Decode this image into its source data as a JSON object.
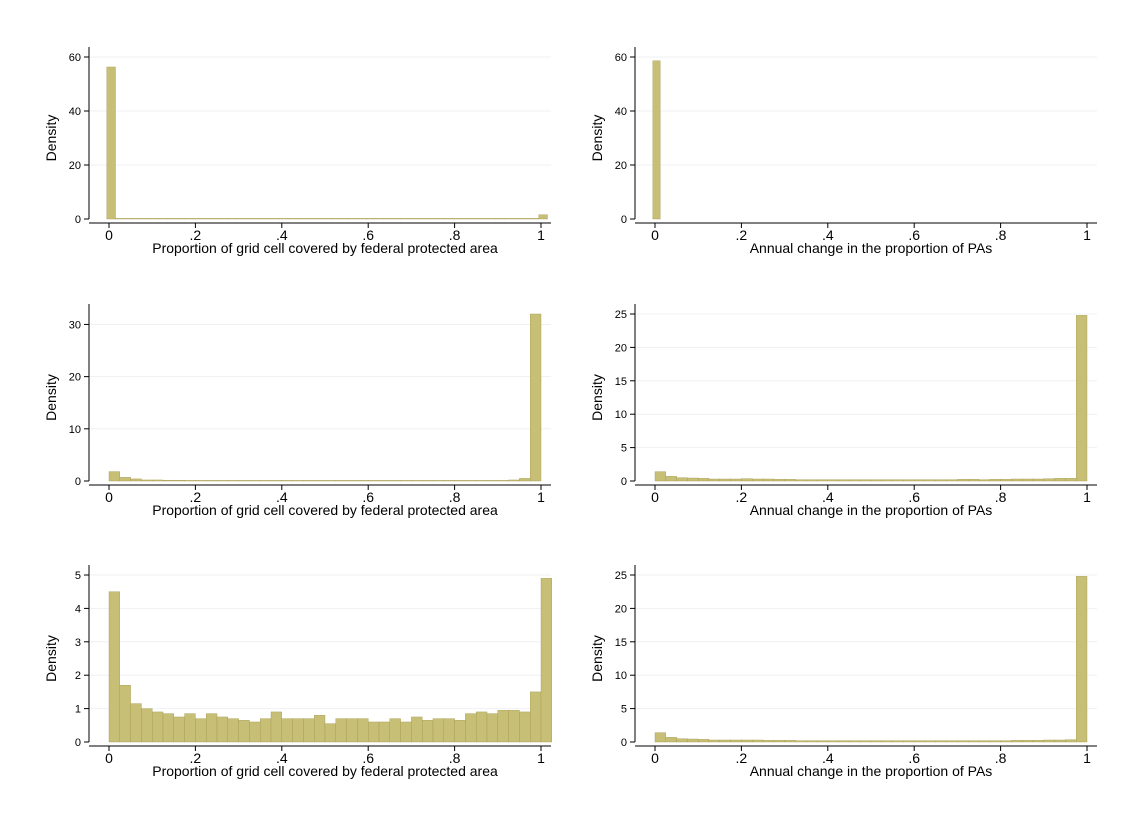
{
  "colors": {
    "bar_fill": "#c8bf76",
    "bar_stroke": "#a39a4f",
    "gridline": "#eef1f4",
    "axis": "#000000"
  },
  "chart_data": [
    {
      "type": "bar",
      "xlabel": "Proportion of grid cell covered by federal protected area",
      "ylabel": "Density",
      "xlim": [
        0,
        1
      ],
      "ylim": [
        0,
        60
      ],
      "xticks": [
        "0",
        ".2",
        ".4",
        ".6",
        ".8",
        "1"
      ],
      "yticks": [
        "0",
        "20",
        "40",
        "60"
      ],
      "ytick_values": [
        0,
        20,
        40,
        60
      ],
      "grid": true,
      "bins": {
        "start": -0.005,
        "width": 0.02
      },
      "values": [
        56.3,
        0,
        0,
        0,
        0,
        0,
        0,
        0,
        0,
        0,
        0,
        0,
        0,
        0,
        0,
        0,
        0,
        0,
        0,
        0,
        0,
        0,
        0,
        0,
        0,
        0,
        0,
        0,
        0,
        0,
        0,
        0,
        0,
        0,
        0,
        0,
        0,
        0,
        0,
        0,
        0,
        0,
        0,
        0,
        0,
        0,
        0,
        0,
        0,
        0,
        1.6
      ]
    },
    {
      "type": "bar",
      "xlabel": "Annual change in the proportion of PAs",
      "ylabel": "Density",
      "xlim": [
        0,
        1
      ],
      "ylim": [
        0,
        60
      ],
      "xticks": [
        "0",
        ".2",
        ".4",
        ".6",
        ".8",
        "1"
      ],
      "yticks": [
        "0",
        "20",
        "40",
        "60"
      ],
      "ytick_values": [
        0,
        20,
        40,
        60
      ],
      "grid": true,
      "bins": {
        "start": -0.005,
        "width": 0.017
      },
      "values": [
        58.6
      ]
    },
    {
      "type": "bar",
      "xlabel": "Proportion of grid cell covered by federal protected area",
      "ylabel": "Density",
      "xlim": [
        0,
        1
      ],
      "ylim": [
        0,
        32
      ],
      "xticks": [
        "0",
        ".2",
        ".4",
        ".6",
        ".8",
        "1"
      ],
      "yticks": [
        "0",
        "10",
        "20",
        "30"
      ],
      "ytick_values": [
        0,
        10,
        20,
        30
      ],
      "grid": true,
      "bins": {
        "start": 0,
        "width": 0.025
      },
      "values": [
        1.8,
        0.7,
        0.4,
        0.2,
        0.2,
        0.15,
        0.15,
        0.1,
        0.1,
        0.1,
        0.1,
        0.1,
        0.1,
        0.1,
        0.1,
        0.1,
        0.1,
        0.1,
        0.1,
        0.1,
        0.1,
        0.1,
        0.1,
        0.1,
        0.1,
        0.1,
        0.1,
        0.1,
        0.1,
        0.1,
        0.1,
        0.1,
        0.1,
        0.1,
        0.1,
        0.1,
        0.1,
        0.2,
        0.5,
        32
      ]
    },
    {
      "type": "bar",
      "xlabel": "Annual change in the proportion of PAs",
      "ylabel": "Density",
      "xlim": [
        0,
        1
      ],
      "ylim": [
        0,
        25
      ],
      "xticks": [
        "0",
        ".2",
        ".4",
        ".6",
        ".8",
        "1"
      ],
      "yticks": [
        "0",
        "5",
        "10",
        "15",
        "20",
        "25"
      ],
      "ytick_values": [
        0,
        5,
        10,
        15,
        20,
        25
      ],
      "grid": true,
      "bins": {
        "start": 0,
        "width": 0.025
      },
      "values": [
        1.4,
        0.7,
        0.5,
        0.45,
        0.4,
        0.3,
        0.3,
        0.3,
        0.35,
        0.3,
        0.3,
        0.25,
        0.25,
        0.2,
        0.2,
        0.2,
        0.2,
        0.2,
        0.2,
        0.2,
        0.2,
        0.2,
        0.2,
        0.2,
        0.2,
        0.2,
        0.2,
        0.2,
        0.25,
        0.25,
        0.2,
        0.25,
        0.25,
        0.3,
        0.3,
        0.3,
        0.35,
        0.4,
        0.4,
        24.8
      ]
    },
    {
      "type": "bar",
      "xlabel": "Proportion of grid cell covered by federal protected area",
      "ylabel": "Density",
      "xlim": [
        0,
        1
      ],
      "ylim": [
        0,
        5
      ],
      "xticks": [
        "0",
        ".2",
        ".4",
        ".6",
        ".8",
        "1"
      ],
      "yticks": [
        "0",
        "1",
        "2",
        "3",
        "4",
        "5"
      ],
      "ytick_values": [
        0,
        1,
        2,
        3,
        4,
        5
      ],
      "grid": true,
      "bins": {
        "start": 0,
        "width": 0.025
      },
      "values": [
        4.5,
        1.7,
        1.15,
        1.0,
        0.9,
        0.85,
        0.75,
        0.85,
        0.7,
        0.85,
        0.75,
        0.7,
        0.65,
        0.6,
        0.7,
        0.9,
        0.7,
        0.7,
        0.7,
        0.8,
        0.55,
        0.7,
        0.7,
        0.7,
        0.6,
        0.6,
        0.7,
        0.6,
        0.75,
        0.65,
        0.7,
        0.7,
        0.65,
        0.85,
        0.9,
        0.85,
        0.95,
        0.95,
        0.9,
        1.5,
        4.9
      ]
    },
    {
      "type": "bar",
      "xlabel": "Annual change in the proportion of PAs",
      "ylabel": "Density",
      "xlim": [
        0,
        1
      ],
      "ylim": [
        0,
        25
      ],
      "xticks": [
        "0",
        ".2",
        ".4",
        ".6",
        ".8",
        "1"
      ],
      "yticks": [
        "0",
        "5",
        "10",
        "15",
        "20",
        "25"
      ],
      "ytick_values": [
        0,
        5,
        10,
        15,
        20,
        25
      ],
      "grid": true,
      "bins": {
        "start": 0,
        "width": 0.025
      },
      "values": [
        1.4,
        0.7,
        0.5,
        0.45,
        0.4,
        0.3,
        0.3,
        0.3,
        0.3,
        0.3,
        0.25,
        0.25,
        0.25,
        0.2,
        0.2,
        0.2,
        0.2,
        0.2,
        0.2,
        0.2,
        0.2,
        0.2,
        0.2,
        0.2,
        0.2,
        0.2,
        0.2,
        0.2,
        0.2,
        0.2,
        0.2,
        0.2,
        0.2,
        0.25,
        0.25,
        0.25,
        0.3,
        0.3,
        0.35,
        24.8
      ]
    }
  ]
}
